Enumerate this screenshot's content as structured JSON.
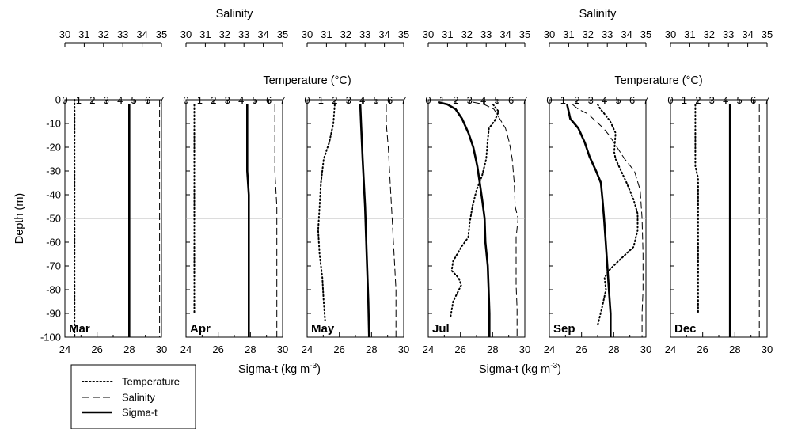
{
  "chart_data": {
    "type": "line",
    "panels": [
      {
        "month": "Mar",
        "series": {
          "temperature": [
            [
              0.7,
              0
            ],
            [
              0.7,
              -100
            ]
          ],
          "salinity": [
            [
              34.9,
              0
            ],
            [
              34.9,
              -100
            ]
          ],
          "sigma_t": [
            [
              28.0,
              -2
            ],
            [
              28.0,
              -100
            ]
          ]
        }
      },
      {
        "month": "Apr",
        "series": {
          "temperature": [
            [
              0.6,
              -2
            ],
            [
              0.6,
              -90
            ]
          ],
          "salinity": [
            [
              34.6,
              -2
            ],
            [
              34.6,
              -30
            ],
            [
              34.7,
              -45
            ],
            [
              34.7,
              -100
            ]
          ],
          "sigma_t": [
            [
              27.8,
              -2
            ],
            [
              27.8,
              -30
            ],
            [
              27.9,
              -40
            ],
            [
              27.9,
              -100
            ]
          ]
        }
      },
      {
        "month": "May",
        "series": {
          "temperature": [
            [
              2.0,
              -2
            ],
            [
              1.9,
              -10
            ],
            [
              1.6,
              -18
            ],
            [
              1.2,
              -25
            ],
            [
              1.0,
              -35
            ],
            [
              0.9,
              -45
            ],
            [
              0.8,
              -55
            ],
            [
              0.9,
              -65
            ],
            [
              1.1,
              -75
            ],
            [
              1.2,
              -85
            ],
            [
              1.3,
              -93
            ]
          ],
          "salinity": [
            [
              34.1,
              -2
            ],
            [
              34.1,
              -10
            ],
            [
              34.2,
              -20
            ],
            [
              34.3,
              -35
            ],
            [
              34.4,
              -50
            ],
            [
              34.5,
              -65
            ],
            [
              34.6,
              -80
            ],
            [
              34.6,
              -90
            ],
            [
              34.6,
              -100
            ]
          ],
          "sigma_t": [
            [
              27.3,
              -2
            ],
            [
              27.35,
              -10
            ],
            [
              27.45,
              -25
            ],
            [
              27.6,
              -45
            ],
            [
              27.7,
              -65
            ],
            [
              27.8,
              -85
            ],
            [
              27.85,
              -100
            ]
          ]
        }
      },
      {
        "month": "Jul",
        "series": {
          "temperature": [
            [
              4.7,
              -2
            ],
            [
              5.1,
              -5
            ],
            [
              4.8,
              -9
            ],
            [
              4.4,
              -12
            ],
            [
              4.3,
              -18
            ],
            [
              4.2,
              -25
            ],
            [
              3.9,
              -32
            ],
            [
              3.5,
              -38
            ],
            [
              3.2,
              -45
            ],
            [
              3.0,
              -52
            ],
            [
              2.9,
              -58
            ],
            [
              2.4,
              -62
            ],
            [
              1.8,
              -68
            ],
            [
              1.7,
              -72
            ],
            [
              2.2,
              -75
            ],
            [
              2.4,
              -78
            ],
            [
              1.8,
              -85
            ],
            [
              1.6,
              -92
            ]
          ],
          "salinity": [
            [
              32.3,
              -1
            ],
            [
              32.9,
              -2
            ],
            [
              33.4,
              -4
            ],
            [
              33.7,
              -8
            ],
            [
              34.0,
              -12
            ],
            [
              34.2,
              -18
            ],
            [
              34.35,
              -25
            ],
            [
              34.45,
              -35
            ],
            [
              34.5,
              -45
            ],
            [
              34.65,
              -50
            ],
            [
              34.55,
              -58
            ],
            [
              34.55,
              -68
            ],
            [
              34.55,
              -78
            ],
            [
              34.6,
              -88
            ],
            [
              34.6,
              -100
            ]
          ],
          "sigma_t": [
            [
              24.6,
              -1
            ],
            [
              25.2,
              -2
            ],
            [
              25.7,
              -4
            ],
            [
              26.1,
              -8
            ],
            [
              26.5,
              -14
            ],
            [
              26.8,
              -20
            ],
            [
              27.05,
              -28
            ],
            [
              27.2,
              -35
            ],
            [
              27.35,
              -42
            ],
            [
              27.5,
              -50
            ],
            [
              27.55,
              -60
            ],
            [
              27.7,
              -70
            ],
            [
              27.75,
              -80
            ],
            [
              27.8,
              -90
            ],
            [
              27.8,
              -100
            ]
          ]
        }
      },
      {
        "month": "Sep",
        "series": {
          "temperature": [
            [
              3.5,
              -2
            ],
            [
              3.7,
              -4
            ],
            [
              4.0,
              -6
            ],
            [
              4.4,
              -9
            ],
            [
              4.8,
              -14
            ],
            [
              4.7,
              -22
            ],
            [
              4.8,
              -25
            ],
            [
              5.2,
              -30
            ],
            [
              5.6,
              -35
            ],
            [
              6.1,
              -42
            ],
            [
              6.4,
              -48
            ],
            [
              6.4,
              -55
            ],
            [
              6.1,
              -62
            ],
            [
              5.0,
              -68
            ],
            [
              4.3,
              -72
            ],
            [
              4.0,
              -75
            ],
            [
              4.1,
              -80
            ],
            [
              3.8,
              -88
            ],
            [
              3.5,
              -95
            ]
          ],
          "salinity": [
            [
              31.2,
              -2
            ],
            [
              31.5,
              -4
            ],
            [
              32.0,
              -6
            ],
            [
              32.4,
              -9
            ],
            [
              32.8,
              -12
            ],
            [
              33.1,
              -15
            ],
            [
              33.5,
              -20
            ],
            [
              33.9,
              -25
            ],
            [
              34.4,
              -30
            ],
            [
              34.7,
              -38
            ],
            [
              34.8,
              -50
            ],
            [
              34.85,
              -65
            ],
            [
              34.85,
              -80
            ],
            [
              34.8,
              -90
            ],
            [
              34.8,
              -100
            ]
          ],
          "sigma_t": [
            [
              25.1,
              -2
            ],
            [
              25.2,
              -5
            ],
            [
              25.3,
              -8
            ],
            [
              25.8,
              -12
            ],
            [
              26.2,
              -18
            ],
            [
              26.5,
              -24
            ],
            [
              26.9,
              -30
            ],
            [
              27.2,
              -35
            ],
            [
              27.3,
              -42
            ],
            [
              27.4,
              -50
            ],
            [
              27.5,
              -60
            ],
            [
              27.6,
              -70
            ],
            [
              27.7,
              -80
            ],
            [
              27.8,
              -90
            ],
            [
              27.8,
              -100
            ]
          ]
        }
      },
      {
        "month": "Dec",
        "series": {
          "temperature": [
            [
              1.8,
              -2
            ],
            [
              1.8,
              -28
            ],
            [
              2.0,
              -33
            ],
            [
              2.0,
              -90
            ]
          ],
          "salinity": [
            [
              34.6,
              -2
            ],
            [
              34.6,
              -100
            ]
          ],
          "sigma_t": [
            [
              27.7,
              -2
            ],
            [
              27.7,
              -100
            ]
          ]
        }
      }
    ],
    "axes": {
      "salinity": {
        "label": "Salinity",
        "range": [
          30,
          35
        ],
        "ticks": [
          "30",
          "31",
          "32",
          "33",
          "34",
          "35"
        ]
      },
      "temperature": {
        "label": "Temperature (°C)",
        "range": [
          0,
          7
        ],
        "ticks": [
          "0",
          "1",
          "2",
          "3",
          "4",
          "5",
          "6",
          "7"
        ]
      },
      "sigma_t": {
        "label": "Sigma-t (kg m",
        "label_sup": "-3",
        "label_end": ")",
        "range": [
          24,
          30
        ],
        "ticks": [
          "24",
          "26",
          "28",
          "30"
        ]
      },
      "depth": {
        "label": "Depth (m)",
        "range": [
          -100,
          0
        ],
        "ticks": [
          "0",
          "-10",
          "-20",
          "-30",
          "-40",
          "-50",
          "-60",
          "-70",
          "-80",
          "-90",
          "-100"
        ]
      }
    },
    "reference_line_depth": -50,
    "legend": [
      {
        "key": "temperature",
        "label": "Temperature"
      },
      {
        "key": "salinity",
        "label": "Salinity"
      },
      {
        "key": "sigma_t",
        "label": "Sigma-t"
      }
    ],
    "colors": {
      "lines": "#000000",
      "reference_line": "#b8b8b8"
    }
  }
}
